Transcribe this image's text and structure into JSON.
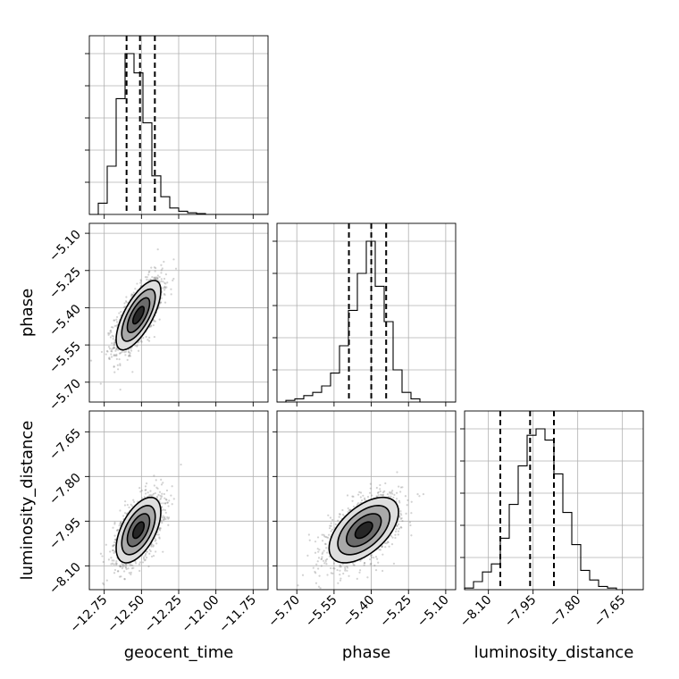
{
  "chart_data": {
    "type": "corner",
    "parameters": [
      "geocent_time",
      "phase",
      "luminosity_distance"
    ],
    "axis_labels": {
      "geocent_time": "geocent_time",
      "phase": "phase",
      "luminosity_distance": "luminosity_distance"
    },
    "ranges": {
      "geocent_time": [
        -12.85,
        -11.65
      ],
      "phase": [
        -5.78,
        -5.06
      ],
      "luminosity_distance": [
        -8.18,
        -7.58
      ]
    },
    "ticks": {
      "geocent_time": [
        -12.75,
        -12.5,
        -12.25,
        -12.0,
        -11.75
      ],
      "phase": [
        -5.7,
        -5.55,
        -5.4,
        -5.25,
        -5.1
      ],
      "luminosity_distance": [
        -8.1,
        -7.95,
        -7.8,
        -7.65
      ]
    },
    "tick_labels": {
      "geocent_time": [
        "−12.75",
        "−12.50",
        "−12.25",
        "−12.00",
        "−11.75"
      ],
      "phase": [
        "−5.70",
        "−5.55",
        "−5.40",
        "−5.25",
        "−5.10"
      ],
      "luminosity_distance": [
        "−8.10",
        "−7.95",
        "−7.80",
        "−7.65"
      ]
    },
    "histograms": {
      "geocent_time": {
        "bin_width": 0.06,
        "start": -12.85,
        "heights": [
          0,
          0.07,
          0.3,
          0.72,
          1.0,
          0.88,
          0.57,
          0.24,
          0.11,
          0.04,
          0.02,
          0.01,
          0.005,
          0,
          0,
          0,
          0,
          0,
          0,
          0
        ],
        "quantiles": [
          -12.6,
          -12.51,
          -12.41
        ]
      },
      "phase": {
        "bin_width": 0.036,
        "start": -5.78,
        "heights": [
          0,
          0.01,
          0.02,
          0.04,
          0.06,
          0.1,
          0.18,
          0.35,
          0.57,
          0.8,
          1.0,
          0.72,
          0.5,
          0.2,
          0.06,
          0.02,
          0,
          0,
          0,
          0
        ],
        "quantiles": [
          -5.49,
          -5.4,
          -5.34
        ]
      },
      "luminosity_distance": {
        "bin_width": 0.03,
        "start": -8.18,
        "heights": [
          0.01,
          0.05,
          0.11,
          0.16,
          0.32,
          0.53,
          0.77,
          0.96,
          1.0,
          0.93,
          0.72,
          0.48,
          0.28,
          0.12,
          0.06,
          0.02,
          0.01,
          0,
          0,
          0
        ],
        "quantiles": [
          -8.06,
          -7.96,
          -7.88
        ]
      }
    },
    "posteriors_2d": [
      {
        "x": "geocent_time",
        "y": "phase",
        "mean": [
          -12.52,
          -5.43
        ],
        "sd": [
          0.075,
          0.07
        ],
        "rho": 0.7
      },
      {
        "x": "geocent_time",
        "y": "luminosity_distance",
        "mean": [
          -12.52,
          -7.98
        ],
        "sd": [
          0.075,
          0.055
        ],
        "rho": 0.55
      },
      {
        "x": "phase",
        "y": "luminosity_distance",
        "mean": [
          -5.43,
          -7.98
        ],
        "sd": [
          0.07,
          0.055
        ],
        "rho": 0.55
      }
    ],
    "contour_levels_sigma": [
      0.5,
      1.0,
      1.5,
      2.0
    ],
    "contour_fills": [
      "#1a1a1a",
      "#606060",
      "#a0a0a0",
      "#d8d8d8"
    ],
    "grid": true
  }
}
